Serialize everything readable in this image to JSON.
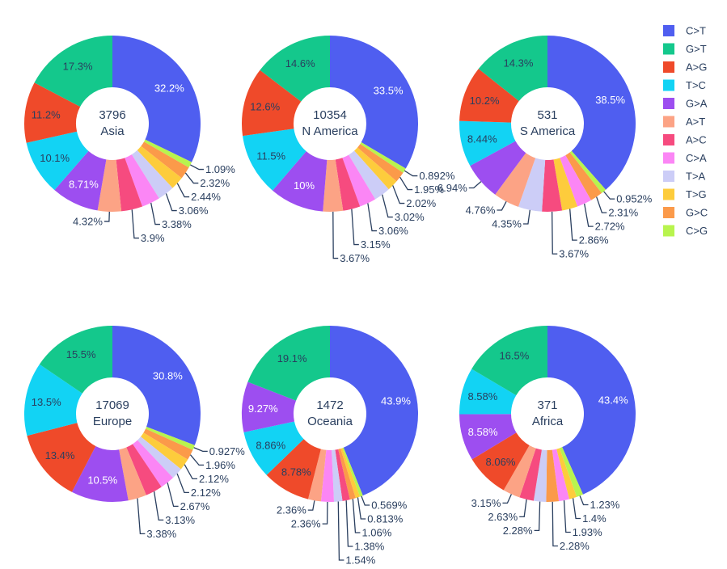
{
  "chart_data": {
    "type": "pie",
    "legend": {
      "placement": "right",
      "entries": [
        "C>T",
        "G>T",
        "A>G",
        "T>C",
        "G>A",
        "A>T",
        "A>C",
        "C>A",
        "T>A",
        "T>G",
        "G>C",
        "C>G"
      ],
      "colors": [
        "#4f5ef0",
        "#14c88c",
        "#ef4a2a",
        "#12d3f4",
        "#9d4ef0",
        "#fca385",
        "#f64b7f",
        "#fb86f5",
        "#cccdf7",
        "#fdcc3c",
        "#fb9a4a",
        "#b8f44e"
      ]
    },
    "charts": [
      {
        "count": "3796",
        "region": "Asia",
        "slices": [
          {
            "category": "C>T",
            "value": 32.2,
            "label": "32.2%"
          },
          {
            "category": "C>G",
            "value": 1.09,
            "label": "1.09%"
          },
          {
            "category": "G>C",
            "value": 2.32,
            "label": "2.32%"
          },
          {
            "category": "T>G",
            "value": 2.44,
            "label": "2.44%"
          },
          {
            "category": "T>A",
            "value": 3.06,
            "label": "3.06%"
          },
          {
            "category": "C>A",
            "value": 3.38,
            "label": "3.38%"
          },
          {
            "category": "A>C",
            "value": 3.9,
            "label": "3.9%"
          },
          {
            "category": "A>T",
            "value": 4.32,
            "label": "4.32%"
          },
          {
            "category": "G>A",
            "value": 8.71,
            "label": "8.71%"
          },
          {
            "category": "T>C",
            "value": 10.1,
            "label": "10.1%"
          },
          {
            "category": "A>G",
            "value": 11.2,
            "label": "11.2%"
          },
          {
            "category": "G>T",
            "value": 17.3,
            "label": "17.3%"
          }
        ]
      },
      {
        "count": "10354",
        "region": "N America",
        "slices": [
          {
            "category": "C>T",
            "value": 33.5,
            "label": "33.5%"
          },
          {
            "category": "C>G",
            "value": 0.892,
            "label": "0.892%"
          },
          {
            "category": "G>C",
            "value": 1.95,
            "label": "1.95%"
          },
          {
            "category": "T>G",
            "value": 2.02,
            "label": "2.02%"
          },
          {
            "category": "T>A",
            "value": 3.02,
            "label": "3.02%"
          },
          {
            "category": "C>A",
            "value": 3.06,
            "label": "3.06%"
          },
          {
            "category": "A>C",
            "value": 3.15,
            "label": "3.15%"
          },
          {
            "category": "A>T",
            "value": 3.67,
            "label": "3.67%"
          },
          {
            "category": "G>A",
            "value": 10,
            "label": "10%"
          },
          {
            "category": "T>C",
            "value": 11.5,
            "label": "11.5%"
          },
          {
            "category": "A>G",
            "value": 12.6,
            "label": "12.6%"
          },
          {
            "category": "G>T",
            "value": 14.6,
            "label": "14.6%"
          }
        ]
      },
      {
        "count": "531",
        "region": "S America",
        "slices": [
          {
            "category": "C>T",
            "value": 38.5,
            "label": "38.5%"
          },
          {
            "category": "C>G",
            "value": 0.952,
            "label": "0.952%"
          },
          {
            "category": "G>C",
            "value": 2.31,
            "label": "2.31%"
          },
          {
            "category": "C>A",
            "value": 2.72,
            "label": "2.72%"
          },
          {
            "category": "T>G",
            "value": 2.86,
            "label": "2.86%"
          },
          {
            "category": "A>C",
            "value": 3.67,
            "label": "3.67%"
          },
          {
            "category": "T>A",
            "value": 4.35,
            "label": "4.35%"
          },
          {
            "category": "A>T",
            "value": 4.76,
            "label": "4.76%"
          },
          {
            "category": "G>A",
            "value": 6.94,
            "label": "6.94%"
          },
          {
            "category": "T>C",
            "value": 8.44,
            "label": "8.44%"
          },
          {
            "category": "A>G",
            "value": 10.2,
            "label": "10.2%"
          },
          {
            "category": "G>T",
            "value": 14.3,
            "label": "14.3%"
          }
        ]
      },
      {
        "count": "17069",
        "region": "Europe",
        "slices": [
          {
            "category": "C>T",
            "value": 30.8,
            "label": "30.8%"
          },
          {
            "category": "C>G",
            "value": 0.927,
            "label": "0.927%"
          },
          {
            "category": "G>C",
            "value": 1.96,
            "label": "1.96%"
          },
          {
            "category": "T>G",
            "value": 2.12,
            "label": "2.12%"
          },
          {
            "category": "T>A",
            "value": 2.12,
            "label": "2.12%"
          },
          {
            "category": "C>A",
            "value": 2.67,
            "label": "2.67%"
          },
          {
            "category": "A>C",
            "value": 3.13,
            "label": "3.13%"
          },
          {
            "category": "A>T",
            "value": 3.38,
            "label": "3.38%"
          },
          {
            "category": "G>A",
            "value": 10.5,
            "label": "10.5%"
          },
          {
            "category": "A>G",
            "value": 13.4,
            "label": "13.4%"
          },
          {
            "category": "T>C",
            "value": 13.5,
            "label": "13.5%"
          },
          {
            "category": "G>T",
            "value": 15.5,
            "label": "15.5%"
          }
        ]
      },
      {
        "count": "1472",
        "region": "Oceania",
        "slices": [
          {
            "category": "C>T",
            "value": 43.9,
            "label": "43.9%"
          },
          {
            "category": "C>G",
            "value": 0.569,
            "label": "0.569%"
          },
          {
            "category": "T>G",
            "value": 0.813,
            "label": "0.813%"
          },
          {
            "category": "G>C",
            "value": 1.06,
            "label": "1.06%"
          },
          {
            "category": "A>C",
            "value": 1.38,
            "label": "1.38%"
          },
          {
            "category": "T>A",
            "value": 1.54,
            "label": "1.54%"
          },
          {
            "category": "C>A",
            "value": 2.36,
            "label": "2.36%"
          },
          {
            "category": "A>T",
            "value": 2.36,
            "label": "2.36%"
          },
          {
            "category": "A>G",
            "value": 8.78,
            "label": "8.78%"
          },
          {
            "category": "T>C",
            "value": 8.86,
            "label": "8.86%"
          },
          {
            "category": "G>A",
            "value": 9.27,
            "label": "9.27%"
          },
          {
            "category": "G>T",
            "value": 19.1,
            "label": "19.1%"
          }
        ]
      },
      {
        "count": "371",
        "region": "Africa",
        "slices": [
          {
            "category": "C>T",
            "value": 43.4,
            "label": "43.4%"
          },
          {
            "category": "C>G",
            "value": 1.23,
            "label": "1.23%"
          },
          {
            "category": "T>G",
            "value": 1.4,
            "label": "1.4%"
          },
          {
            "category": "C>A",
            "value": 1.93,
            "label": "1.93%"
          },
          {
            "category": "G>C",
            "value": 2.28,
            "label": "2.28%"
          },
          {
            "category": "T>A",
            "value": 2.28,
            "label": "2.28%"
          },
          {
            "category": "A>C",
            "value": 2.63,
            "label": "2.63%"
          },
          {
            "category": "A>T",
            "value": 3.15,
            "label": "3.15%"
          },
          {
            "category": "A>G",
            "value": 8.06,
            "label": "8.06%"
          },
          {
            "category": "G>A",
            "value": 8.58,
            "label": "8.58%"
          },
          {
            "category": "T>C",
            "value": 8.58,
            "label": "8.58%"
          },
          {
            "category": "G>T",
            "value": 16.5,
            "label": "16.5%"
          }
        ]
      }
    ]
  }
}
